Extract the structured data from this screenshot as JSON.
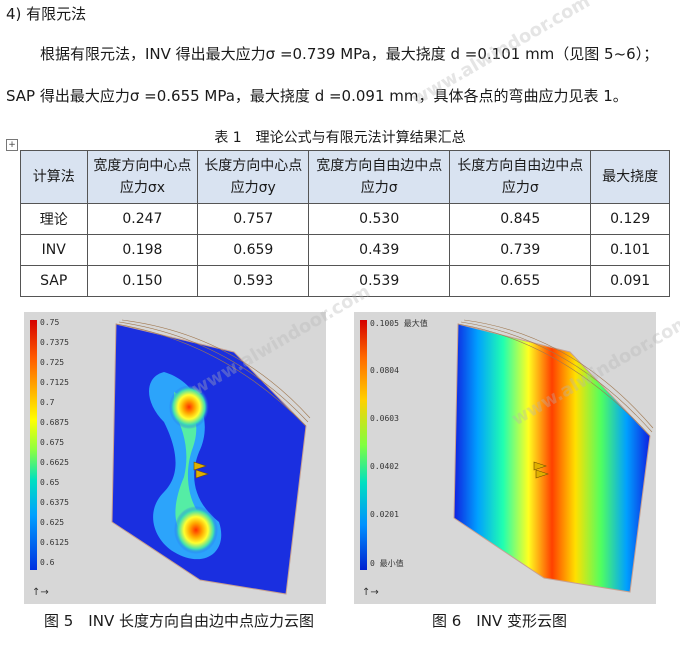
{
  "heading": "4) 有限元法",
  "para1": "根据有限元法，INV 得出最大应力σ =0.739 MPa，最大挠度 d =0.101 mm（见图 5~6）；",
  "para2": "SAP 得出最大应力σ =0.655 MPa，最大挠度 d =0.091 mm，具体各点的弯曲应力见表 1。",
  "table": {
    "caption": "表 1　理论公式与有限元法计算结果汇总",
    "headers": [
      "计算法",
      "宽度方向中心点应力σx",
      "长度方向中心点应力σy",
      "宽度方向自由边中点应力σ",
      "长度方向自由边中点应力σ",
      "最大挠度"
    ],
    "rows": [
      [
        "理论",
        "0.247",
        "0.757",
        "0.530",
        "0.845",
        "0.129"
      ],
      [
        "INV",
        "0.198",
        "0.659",
        "0.439",
        "0.739",
        "0.101"
      ],
      [
        "SAP",
        "0.150",
        "0.593",
        "0.539",
        "0.655",
        "0.091"
      ]
    ]
  },
  "figure5": {
    "caption": "图 5　INV 长度方向自由边中点应力云图",
    "legend": [
      "0.75",
      "0.7375",
      "0.725",
      "0.7125",
      "0.7",
      "0.6875",
      "0.675",
      "0.6625",
      "0.65",
      "0.6375",
      "0.625",
      "0.6125",
      "0.6"
    ]
  },
  "figure6": {
    "caption": "图 6　INV 变形云图",
    "legend": [
      "0.1005 最大值",
      "0.0804",
      "0.0603",
      "0.0402",
      "0.0201",
      "0 最小值"
    ]
  },
  "watermark": "www.alwindoor.com"
}
